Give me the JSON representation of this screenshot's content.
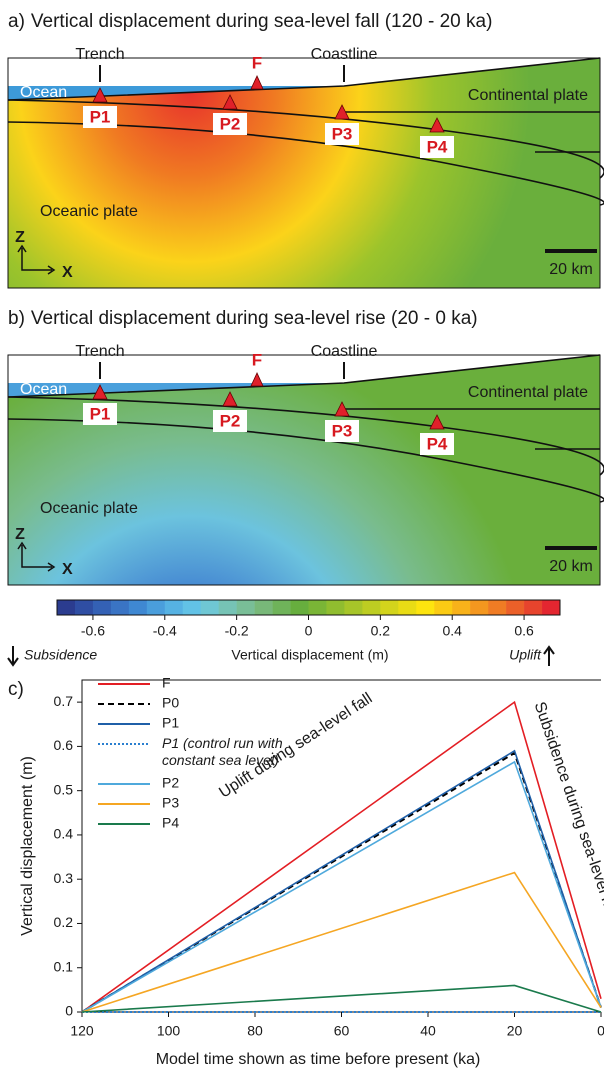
{
  "panels": [
    {
      "letter": "a)",
      "title": "Vertical displacement during sea-level fall (120 - 20 ka)",
      "labels": {
        "trench": "Trench",
        "fault": "F",
        "coastline": "Coastline",
        "ocean": "Ocean",
        "continental_plate": "Continental plate",
        "oceanic_plate": "Oceanic plate",
        "axis_z": "Z",
        "axis_x": "X",
        "scale": "20 km"
      },
      "points": [
        "P1",
        "P2",
        "P3",
        "P4"
      ]
    },
    {
      "letter": "b)",
      "title": "Vertical displacement during sea-level rise (20 - 0 ka)",
      "labels": {
        "trench": "Trench",
        "fault": "F",
        "coastline": "Coastline",
        "ocean": "Ocean",
        "continental_plate": "Continental plate",
        "oceanic_plate": "Oceanic plate",
        "axis_z": "Z",
        "axis_x": "X",
        "scale": "20 km"
      },
      "points": [
        "P1",
        "P2",
        "P3",
        "P4"
      ]
    }
  ],
  "colorbar": {
    "label": "Vertical displacement (m)",
    "left_note": "Subsidence",
    "right_note": "Uplift",
    "lim": [
      -0.7,
      0.7
    ],
    "ticks": [
      -0.6,
      -0.4,
      -0.2,
      0,
      0.2,
      0.4,
      0.6
    ],
    "colors": [
      "#2b3c8f",
      "#2f4ea3",
      "#3461b5",
      "#3a74c4",
      "#3f88d2",
      "#4a9edc",
      "#56b2e3",
      "#62c2e6",
      "#6fc7d4",
      "#76c3b5",
      "#79be97",
      "#78b879",
      "#6fb35a",
      "#67ae3e",
      "#7ab536",
      "#90bd2f",
      "#a7c529",
      "#bdcd22",
      "#d3d41c",
      "#e9dc15",
      "#fde40f",
      "#fbcb14",
      "#f8b21a",
      "#f4971f",
      "#f07c24",
      "#eb6029",
      "#e7442d",
      "#e32630"
    ]
  },
  "chart_data": {
    "type": "line",
    "panel_letter": "c)",
    "x_label": "Model time shown as time before present (ka)",
    "y_label": "Vertical displacement (m)",
    "x": [
      120,
      20,
      0
    ],
    "series": [
      {
        "name": "F",
        "color": "#e31e24",
        "style": "solid",
        "values": [
          0,
          0.7,
          0.03
        ]
      },
      {
        "name": "P0",
        "color": "#000000",
        "style": "dashed",
        "values": [
          0,
          0.585,
          0.01
        ]
      },
      {
        "name": "P1",
        "color": "#1f5fa8",
        "style": "solid",
        "values": [
          0,
          0.59,
          0.01
        ]
      },
      {
        "name": "P1 (control run with constant sea level)",
        "color": "#2a7fcf",
        "style": "dotted",
        "values": [
          0,
          0,
          0
        ]
      },
      {
        "name": "P2",
        "color": "#4fa9dc",
        "style": "solid",
        "values": [
          0,
          0.565,
          0.01
        ]
      },
      {
        "name": "P3",
        "color": "#f5a623",
        "style": "solid",
        "values": [
          0,
          0.315,
          0.01
        ]
      },
      {
        "name": "P4",
        "color": "#1a7a4c",
        "style": "solid",
        "values": [
          0,
          0.06,
          0
        ]
      }
    ],
    "xlim": [
      120,
      0
    ],
    "xticks": [
      120,
      100,
      80,
      60,
      40,
      20,
      0
    ],
    "ylim": [
      0,
      0.75
    ],
    "yticks": [
      0,
      0.1,
      0.2,
      0.3,
      0.4,
      0.5,
      0.6,
      0.7
    ],
    "annotations": [
      "Uplift during sea-level fall",
      "Subsidence during sea-level rise"
    ]
  }
}
